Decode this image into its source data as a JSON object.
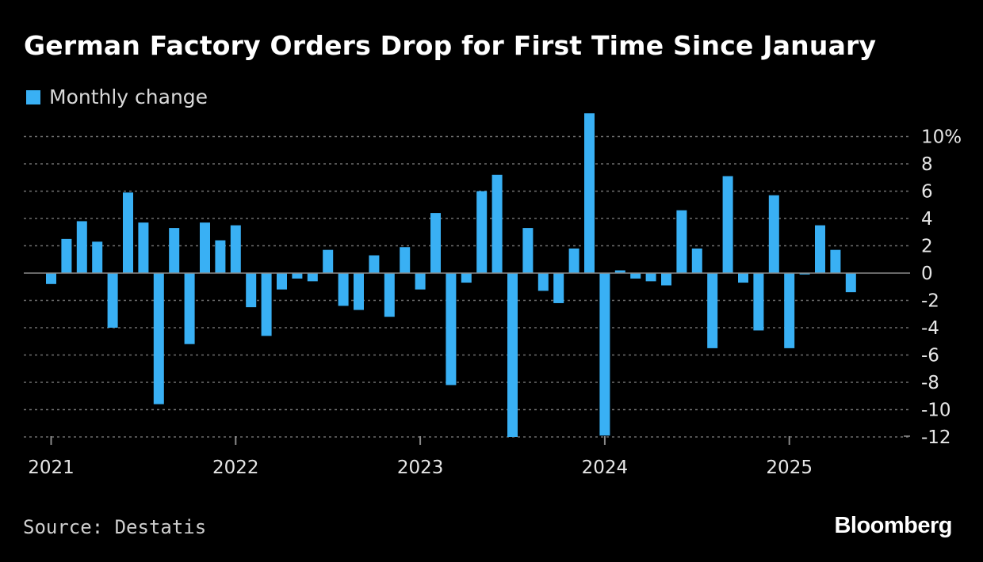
{
  "title": "German Factory Orders Drop for First Time Since January",
  "legend": {
    "label": "Monthly change"
  },
  "source": "Source: Destatis",
  "brand": "Bloomberg",
  "colors": {
    "background": "#000000",
    "bar": "#39b0f4",
    "grid": "#6e6e6e",
    "axis": "#8a8a8a",
    "text": "#e6e6e6"
  },
  "chart_data": {
    "type": "bar",
    "title": "German Factory Orders Drop for First Time Since January",
    "series": [
      {
        "name": "Monthly change",
        "start": "2021-01",
        "values": [
          -0.8,
          2.5,
          3.8,
          2.3,
          -4.0,
          5.9,
          3.7,
          -9.6,
          3.3,
          -5.2,
          3.7,
          2.4,
          3.5,
          -2.5,
          -4.6,
          -1.2,
          -0.4,
          -0.6,
          1.7,
          -2.4,
          -2.7,
          1.3,
          -3.2,
          1.9,
          -1.2,
          4.4,
          -8.2,
          -0.7,
          6.0,
          7.2,
          -12.0,
          3.3,
          -1.3,
          -2.2,
          1.8,
          11.7,
          -11.9,
          0.2,
          -0.4,
          -0.6,
          -0.9,
          4.6,
          1.8,
          -5.5,
          7.1,
          -0.7,
          -4.2,
          5.7,
          -5.5,
          -0.1,
          3.5,
          1.7,
          -1.4
        ]
      }
    ],
    "x_ticks": [
      "2021",
      "2022",
      "2023",
      "2024",
      "2025"
    ],
    "y_ticks": [
      10,
      8,
      6,
      4,
      2,
      0,
      -2,
      -4,
      -6,
      -8,
      -10,
      -12
    ],
    "y_tick_labels": [
      "10%",
      "8",
      "6",
      "4",
      "2",
      "0",
      "-2",
      "-4",
      "-6",
      "-8",
      "-10",
      "-12"
    ],
    "ylim": [
      -12,
      12
    ],
    "xlabel": "",
    "ylabel": "",
    "grid": true,
    "legend_position": "top-left"
  }
}
